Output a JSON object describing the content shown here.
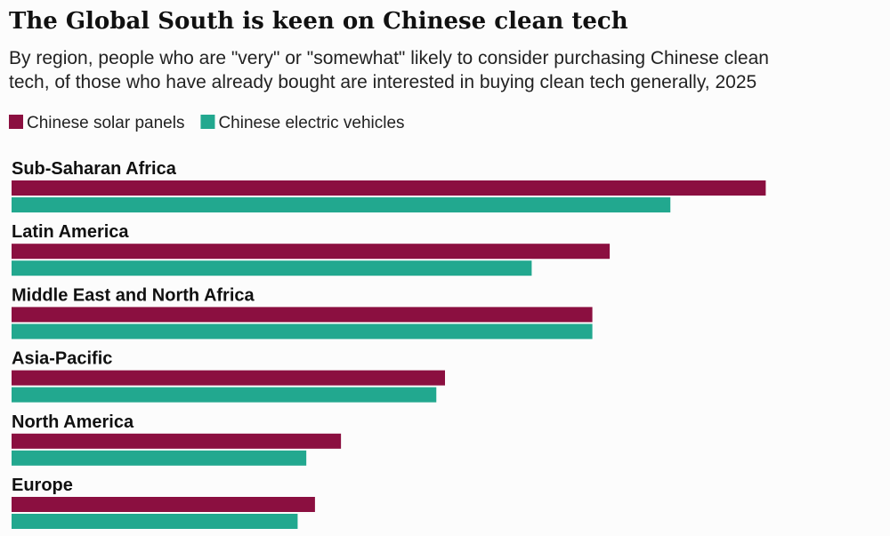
{
  "chart_data": {
    "type": "bar",
    "orientation": "horizontal",
    "title": "The Global South is keen on Chinese clean tech",
    "subtitle": [
      "By region, people who are \"very\" or \"somewhat\" likely to consider purchasing Chinese clean",
      "tech, of those who have already bought are interested in buying clean tech generally, 2025"
    ],
    "categories": [
      "Sub-Saharan Africa",
      "Latin America",
      "Middle East and North Africa",
      "Asia-Pacific",
      "North America",
      "Europe"
    ],
    "series": [
      {
        "name": "Chinese solar panels",
        "color": "#8b0f40",
        "values": [
          87,
          69,
          67,
          50,
          38,
          35
        ]
      },
      {
        "name": "Chinese electric vehicles",
        "color": "#22a88f",
        "values": [
          76,
          60,
          67,
          49,
          34,
          33
        ]
      }
    ],
    "xlim": [
      0,
      100
    ]
  }
}
